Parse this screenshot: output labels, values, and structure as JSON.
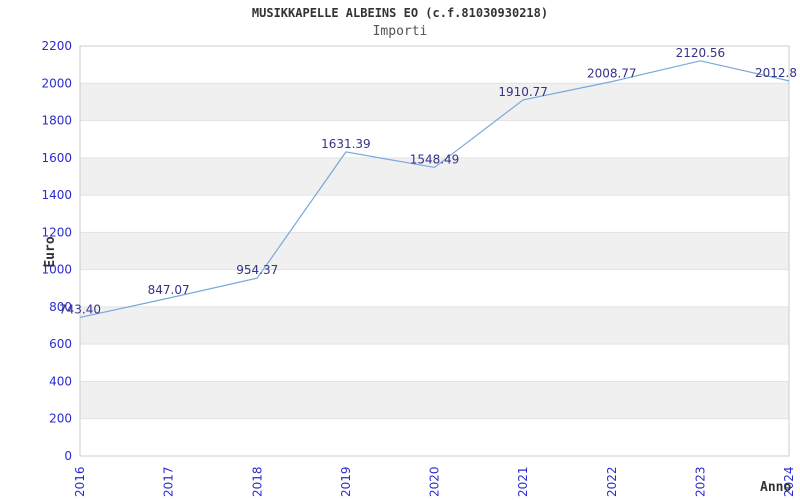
{
  "header": {
    "title": "MUSIKKAPELLE ALBEINS EO (c.f.81030930218)",
    "subtitle": "Importi"
  },
  "chart_data": {
    "type": "line",
    "title": "MUSIKKAPELLE ALBEINS EO (c.f.81030930218)",
    "subtitle": "Importi",
    "xlabel": "Anno",
    "ylabel": "Euro",
    "x": [
      2016,
      2017,
      2018,
      2019,
      2020,
      2021,
      2022,
      2023,
      2024
    ],
    "xticks": [
      "2016",
      "2017",
      "2018",
      "2019",
      "2020",
      "2021",
      "2022",
      "2023",
      "2024"
    ],
    "yticks": [
      "0",
      "200",
      "400",
      "600",
      "800",
      "1000",
      "1200",
      "1400",
      "1600",
      "1800",
      "2000",
      "2200"
    ],
    "ylim": [
      0,
      2200
    ],
    "ytick_step": 200,
    "grid": "horizontal-bands-alternating",
    "legend": "none",
    "series": [
      {
        "name": "Importi",
        "values": [
          743.4,
          847.07,
          954.37,
          1631.39,
          1548.49,
          1910.77,
          2008.77,
          2120.56,
          2012.8
        ],
        "point_labels": [
          "743.40",
          "847.07",
          "954.37",
          "1631.39",
          "1548.49",
          "1910.77",
          "2008.77",
          "2120.56",
          "2012.8"
        ]
      }
    ],
    "colors": {
      "line": "#7aa8dd",
      "point_label": "#333388",
      "tick_label": "#2b2bd0",
      "band_gray": "#f0f0f0",
      "band_white": "#ffffff",
      "grid_line": "#e3e3e3",
      "plot_border": "#cccccc",
      "title": "#333333",
      "subtitle": "#555555",
      "axis_title": "#333333"
    }
  }
}
